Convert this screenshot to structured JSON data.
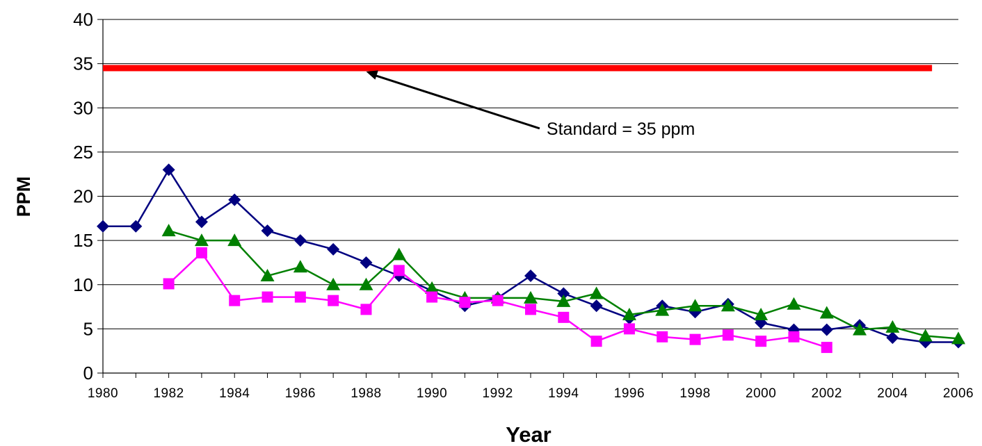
{
  "chart_data": {
    "type": "line",
    "xlabel": "Year",
    "ylabel": "PPM",
    "xlim": [
      1980,
      2006
    ],
    "ylim": [
      0,
      40
    ],
    "x_ticks": [
      "1980",
      "1982",
      "1984",
      "1986",
      "1988",
      "1990",
      "1992",
      "1994",
      "1996",
      "1998",
      "2000",
      "2002",
      "2004",
      "2006"
    ],
    "y_ticks": [
      "0",
      "5",
      "10",
      "15",
      "20",
      "25",
      "30",
      "35",
      "40"
    ],
    "grid": "horizontal",
    "standard_line": {
      "value": 34.5,
      "x_start": 1980,
      "x_end": 2005.2,
      "color": "#ff0000"
    },
    "annotation": {
      "text": "Standard = 35 ppm",
      "points_to_year": 1988,
      "label_year": 1993.4,
      "label_value": 27.2
    },
    "series": [
      {
        "color": "#000080",
        "marker": "diamond",
        "x": [
          1980,
          1981,
          1982,
          1983,
          1984,
          1985,
          1986,
          1987,
          1988,
          1989,
          1990,
          1991,
          1992,
          1993,
          1994,
          1995,
          1996,
          1997,
          1998,
          1999,
          2000,
          2001,
          2002,
          2003,
          2004,
          2005,
          2006
        ],
        "values": [
          16.6,
          16.6,
          23,
          17.1,
          19.6,
          16.1,
          15,
          14,
          12.5,
          11,
          9.3,
          7.6,
          8.5,
          11,
          9,
          7.6,
          6.2,
          7.6,
          6.9,
          7.8,
          5.7,
          4.9,
          4.9,
          5.4,
          4,
          3.5,
          3.5
        ]
      },
      {
        "color": "#008000",
        "marker": "triangle",
        "x": [
          1982,
          1983,
          1984,
          1985,
          1986,
          1987,
          1988,
          1989,
          1990,
          1991,
          1992,
          1993,
          1994,
          1995,
          1996,
          1997,
          1998,
          1999,
          2000,
          2001,
          2002,
          2003,
          2004,
          2005,
          2006
        ],
        "values": [
          16.1,
          15,
          15,
          11,
          12,
          10,
          10,
          13.4,
          9.6,
          8.5,
          8.5,
          8.5,
          8.1,
          9,
          6.6,
          7.1,
          7.6,
          7.6,
          6.6,
          7.8,
          6.8,
          4.9,
          5.2,
          4.2,
          3.9
        ]
      },
      {
        "color": "#ff00ff",
        "marker": "square",
        "x": [
          1982,
          1983,
          1984,
          1985,
          1986,
          1987,
          1988,
          1989,
          1990,
          1991,
          1992,
          1993,
          1994,
          1995,
          1996,
          1997,
          1998,
          1999,
          2000,
          2001,
          2002
        ],
        "values": [
          10.1,
          13.6,
          8.2,
          8.6,
          8.6,
          8.2,
          7.2,
          11.6,
          8.6,
          8,
          8.2,
          7.2,
          6.3,
          3.6,
          5,
          4.1,
          3.8,
          4.3,
          3.6,
          4.1,
          2.9
        ]
      }
    ]
  }
}
